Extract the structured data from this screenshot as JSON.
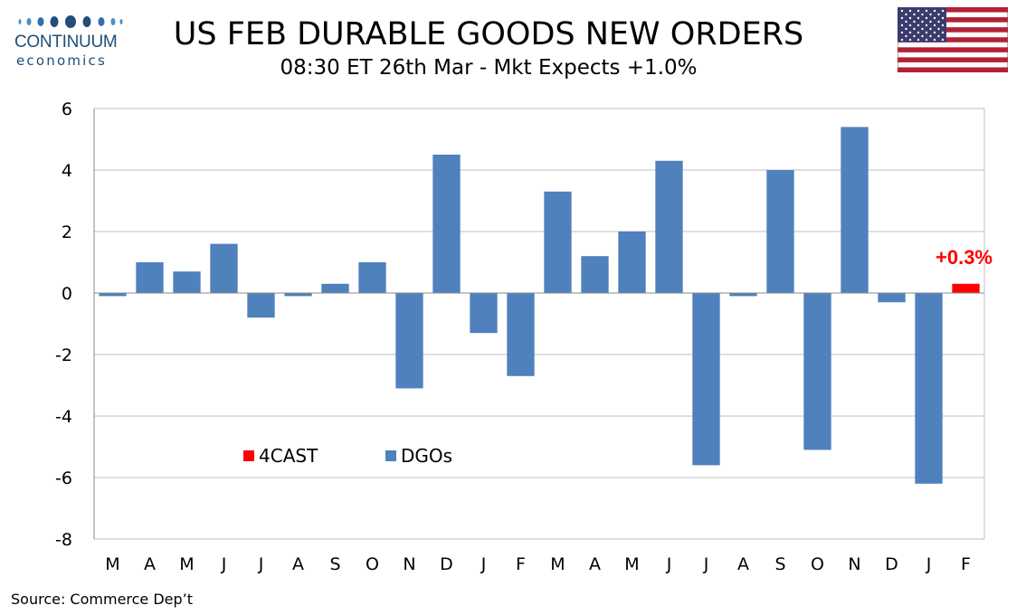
{
  "logo": {
    "word": "CONTINUUM",
    "sub": "economics"
  },
  "header": {
    "title": "US FEB DURABLE GOODS NEW ORDERS",
    "subtitle": "08:30 ET 26th Mar - Mkt Expects +1.0%"
  },
  "source": "Source: Commerce Dep’t",
  "colors": {
    "dgo": "#4f81bd",
    "forecast": "#ff0000",
    "grid": "#bfbfbf",
    "axis": "#888888"
  },
  "chart_data": {
    "type": "bar",
    "categories": [
      "M",
      "A",
      "M",
      "J",
      "J",
      "A",
      "S",
      "O",
      "N",
      "D",
      "J",
      "F",
      "M",
      "A",
      "M",
      "J",
      "J",
      "A",
      "S",
      "O",
      "N",
      "D",
      "J",
      "F"
    ],
    "series": [
      {
        "name": "DGOs",
        "values": [
          -0.1,
          1.0,
          0.7,
          1.6,
          -0.8,
          -0.1,
          0.3,
          1.0,
          -3.1,
          4.5,
          -1.3,
          -2.7,
          3.3,
          1.2,
          2.0,
          4.3,
          -5.6,
          -0.1,
          4.0,
          -5.1,
          5.4,
          -0.3,
          -6.2,
          null
        ]
      },
      {
        "name": "4CAST",
        "values": [
          null,
          null,
          null,
          null,
          null,
          null,
          null,
          null,
          null,
          null,
          null,
          null,
          null,
          null,
          null,
          null,
          null,
          null,
          null,
          null,
          null,
          null,
          null,
          0.3
        ]
      }
    ],
    "ylim": [
      -8,
      6
    ],
    "yticks": [
      "6",
      "4",
      "2",
      "0",
      "-2",
      "-4",
      "-6",
      "-8"
    ],
    "annotation": "+0.3%",
    "legend": [
      {
        "label": "4CAST"
      },
      {
        "label": "DGOs"
      }
    ],
    "legend_position": "lower-left",
    "grid": true
  }
}
